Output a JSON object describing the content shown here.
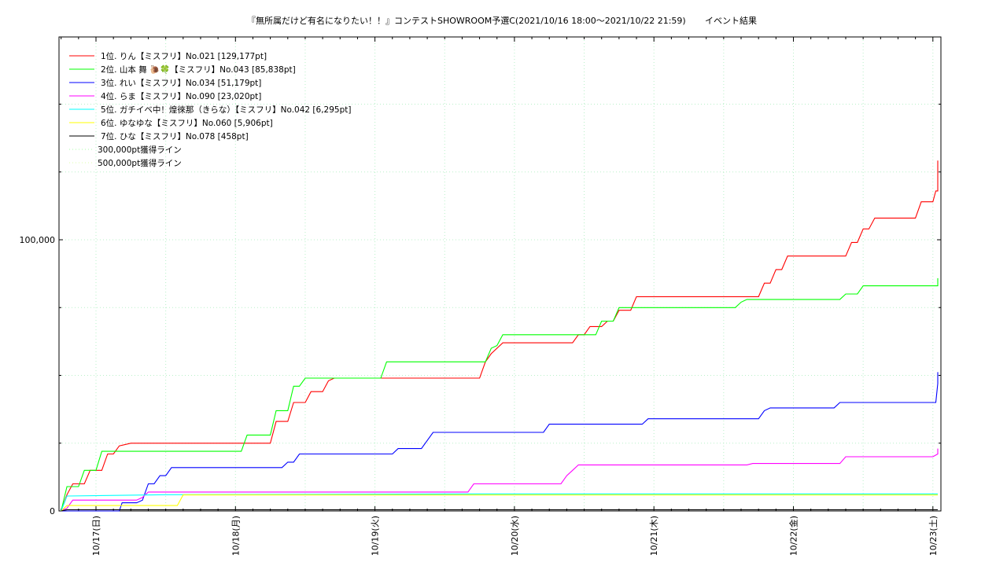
{
  "chart_data": {
    "type": "line",
    "title": "『無所属だけど有名になりたい！！』コンテストSHOWROOM予選C(2021/10/16 18:00～2021/10/22 21:59)",
    "subtitle": "イベント結果",
    "xlabel": "",
    "ylabel": "",
    "ylim": [
      0,
      150000
    ],
    "xlim": [
      "2021-10-16 18:00",
      "2021-10-23 00:00"
    ],
    "y_ticks": [
      {
        "value": 0,
        "label": "0"
      },
      {
        "value": 100000,
        "label": "100,000"
      }
    ],
    "x_ticks": [
      {
        "value": "2021-10-17",
        "label": "10/17(日)"
      },
      {
        "value": "2021-10-18",
        "label": "10/18(月)"
      },
      {
        "value": "2021-10-19",
        "label": "10/19(火)"
      },
      {
        "value": "2021-10-20",
        "label": "10/20(水)"
      },
      {
        "value": "2021-10-21",
        "label": "10/21(木)"
      },
      {
        "value": "2021-10-22",
        "label": "10/22(金)"
      },
      {
        "value": "2021-10-23",
        "label": "10/23(土)"
      }
    ],
    "grid": true,
    "legend_position": "top-left",
    "series": [
      {
        "name": "1位. りん【ミスフリ】No.021 [129,177pt]",
        "color": "#ff0000",
        "points": [
          [
            "2021-10-16 18:00",
            0
          ],
          [
            "2021-10-16 19:00",
            6000
          ],
          [
            "2021-10-16 20:00",
            10000
          ],
          [
            "2021-10-16 22:00",
            10000
          ],
          [
            "2021-10-16 23:00",
            15000
          ],
          [
            "2021-10-17 01:00",
            15000
          ],
          [
            "2021-10-17 02:00",
            21000
          ],
          [
            "2021-10-17 03:00",
            21000
          ],
          [
            "2021-10-17 04:00",
            24000
          ],
          [
            "2021-10-17 06:00",
            25000
          ],
          [
            "2021-10-18 06:00",
            25000
          ],
          [
            "2021-10-18 07:00",
            33000
          ],
          [
            "2021-10-18 09:00",
            33000
          ],
          [
            "2021-10-18 10:00",
            40000
          ],
          [
            "2021-10-18 12:00",
            40000
          ],
          [
            "2021-10-18 13:00",
            44000
          ],
          [
            "2021-10-18 15:00",
            44000
          ],
          [
            "2021-10-18 16:00",
            48000
          ],
          [
            "2021-10-18 17:00",
            49000
          ],
          [
            "2021-10-19 18:00",
            49000
          ],
          [
            "2021-10-19 19:00",
            55000
          ],
          [
            "2021-10-19 20:00",
            58000
          ],
          [
            "2021-10-19 22:00",
            62000
          ],
          [
            "2021-10-20 10:00",
            62000
          ],
          [
            "2021-10-20 11:00",
            65000
          ],
          [
            "2021-10-20 12:00",
            65000
          ],
          [
            "2021-10-20 13:00",
            68000
          ],
          [
            "2021-10-20 15:00",
            68000
          ],
          [
            "2021-10-20 16:00",
            70000
          ],
          [
            "2021-10-20 17:00",
            70000
          ],
          [
            "2021-10-20 18:00",
            74000
          ],
          [
            "2021-10-20 20:00",
            74000
          ],
          [
            "2021-10-20 21:00",
            79000
          ],
          [
            "2021-10-21 18:00",
            79000
          ],
          [
            "2021-10-21 19:00",
            84000
          ],
          [
            "2021-10-21 20:00",
            84000
          ],
          [
            "2021-10-21 21:00",
            89000
          ],
          [
            "2021-10-21 22:00",
            89000
          ],
          [
            "2021-10-21 23:00",
            94000
          ],
          [
            "2021-10-22 09:00",
            94000
          ],
          [
            "2021-10-22 10:00",
            99000
          ],
          [
            "2021-10-22 11:00",
            99000
          ],
          [
            "2021-10-22 12:00",
            104000
          ],
          [
            "2021-10-22 13:00",
            104000
          ],
          [
            "2021-10-22 14:00",
            108000
          ],
          [
            "2021-10-22 21:00",
            108000
          ],
          [
            "2021-10-22 22:00",
            114000
          ],
          [
            "2021-10-22 23:00",
            114000
          ],
          [
            "2021-10-23 00:00",
            114000
          ],
          [
            "2021-10-23 00:30",
            118000
          ],
          [
            "2021-10-23 01:00",
            118000
          ],
          [
            "2021-10-23 02:00",
            123000
          ],
          [
            "2021-10-23 03:00",
            126000
          ],
          [
            "2021-10-23 04:00",
            129177
          ],
          [
            "2021-10-23 04:59",
            129177
          ]
        ]
      },
      {
        "name": "2位. 山本 舞 🐌🍀【ミスフリ】No.043 [85,838pt]",
        "color": "#00ff00",
        "points": [
          [
            "2021-10-16 18:00",
            0
          ],
          [
            "2021-10-16 19:00",
            9000
          ],
          [
            "2021-10-16 21:00",
            9000
          ],
          [
            "2021-10-16 22:00",
            15000
          ],
          [
            "2021-10-17 00:00",
            15000
          ],
          [
            "2021-10-17 01:00",
            22000
          ],
          [
            "2021-10-18 01:00",
            22000
          ],
          [
            "2021-10-18 02:00",
            28000
          ],
          [
            "2021-10-18 06:00",
            28000
          ],
          [
            "2021-10-18 07:00",
            37000
          ],
          [
            "2021-10-18 09:00",
            37000
          ],
          [
            "2021-10-18 10:00",
            46000
          ],
          [
            "2021-10-18 11:00",
            46000
          ],
          [
            "2021-10-18 12:00",
            49000
          ],
          [
            "2021-10-19 01:00",
            49000
          ],
          [
            "2021-10-19 02:00",
            55000
          ],
          [
            "2021-10-19 19:00",
            55000
          ],
          [
            "2021-10-19 20:00",
            60000
          ],
          [
            "2021-10-19 21:00",
            61000
          ],
          [
            "2021-10-19 22:00",
            65000
          ],
          [
            "2021-10-20 14:00",
            65000
          ],
          [
            "2021-10-20 15:00",
            70000
          ],
          [
            "2021-10-20 17:00",
            70000
          ],
          [
            "2021-10-20 18:00",
            75000
          ],
          [
            "2021-10-21 14:00",
            75000
          ],
          [
            "2021-10-21 15:00",
            77000
          ],
          [
            "2021-10-21 16:00",
            78000
          ],
          [
            "2021-10-22 08:00",
            78000
          ],
          [
            "2021-10-22 09:00",
            80000
          ],
          [
            "2021-10-22 11:00",
            80000
          ],
          [
            "2021-10-22 12:00",
            83000
          ],
          [
            "2021-10-23 01:00",
            83000
          ],
          [
            "2021-10-23 02:00",
            85838
          ],
          [
            "2021-10-23 04:59",
            85838
          ]
        ]
      },
      {
        "name": "3位. れい【ミスフリ】No.034 [51,179pt]",
        "color": "#0000ff",
        "points": [
          [
            "2021-10-16 18:00",
            0
          ],
          [
            "2021-10-17 04:00",
            0
          ],
          [
            "2021-10-17 04:30",
            3000
          ],
          [
            "2021-10-17 06:00",
            3000
          ],
          [
            "2021-10-17 07:00",
            3000
          ],
          [
            "2021-10-17 08:00",
            4000
          ],
          [
            "2021-10-17 09:00",
            10000
          ],
          [
            "2021-10-17 10:00",
            10000
          ],
          [
            "2021-10-17 11:00",
            13000
          ],
          [
            "2021-10-17 12:00",
            13000
          ],
          [
            "2021-10-17 13:00",
            16000
          ],
          [
            "2021-10-18 08:00",
            16000
          ],
          [
            "2021-10-18 09:00",
            18000
          ],
          [
            "2021-10-18 10:00",
            18000
          ],
          [
            "2021-10-18 11:00",
            21000
          ],
          [
            "2021-10-19 03:00",
            21000
          ],
          [
            "2021-10-19 04:00",
            23000
          ],
          [
            "2021-10-19 08:00",
            23000
          ],
          [
            "2021-10-19 09:00",
            26000
          ],
          [
            "2021-10-19 10:00",
            29000
          ],
          [
            "2021-10-20 05:00",
            29000
          ],
          [
            "2021-10-20 06:00",
            32000
          ],
          [
            "2021-10-20 22:00",
            32000
          ],
          [
            "2021-10-20 23:00",
            34000
          ],
          [
            "2021-10-21 18:00",
            34000
          ],
          [
            "2021-10-21 19:00",
            37000
          ],
          [
            "2021-10-21 20:00",
            38000
          ],
          [
            "2021-10-22 07:00",
            38000
          ],
          [
            "2021-10-22 08:00",
            40000
          ],
          [
            "2021-10-23 00:30",
            40000
          ],
          [
            "2021-10-23 01:00",
            47000
          ],
          [
            "2021-10-23 02:00",
            49000
          ],
          [
            "2021-10-23 03:00",
            51179
          ],
          [
            "2021-10-23 04:59",
            51179
          ]
        ]
      },
      {
        "name": "4位. らま【ミスフリ】No.090 [23,020pt]",
        "color": "#ff00ff",
        "points": [
          [
            "2021-10-16 18:00",
            0
          ],
          [
            "2021-10-16 19:00",
            1000
          ],
          [
            "2021-10-16 20:00",
            4000
          ],
          [
            "2021-10-17 07:00",
            4000
          ],
          [
            "2021-10-17 08:00",
            5000
          ],
          [
            "2021-10-17 09:00",
            7000
          ],
          [
            "2021-10-19 16:00",
            7000
          ],
          [
            "2021-10-19 17:00",
            10000
          ],
          [
            "2021-10-20 08:00",
            10000
          ],
          [
            "2021-10-20 09:00",
            13000
          ],
          [
            "2021-10-20 10:00",
            15000
          ],
          [
            "2021-10-20 11:00",
            17000
          ],
          [
            "2021-10-21 16:00",
            17000
          ],
          [
            "2021-10-21 17:00",
            17500
          ],
          [
            "2021-10-22 08:00",
            17500
          ],
          [
            "2021-10-22 09:00",
            20000
          ],
          [
            "2021-10-23 00:00",
            20000
          ],
          [
            "2021-10-23 01:00",
            21000
          ],
          [
            "2021-10-23 02:00",
            23020
          ],
          [
            "2021-10-23 04:59",
            23020
          ]
        ]
      },
      {
        "name": "5位. ガチイベ中！煌徠那（きらな）【ミスフリ】No.042 [6,295pt]",
        "color": "#00ffff",
        "points": [
          [
            "2021-10-16 18:00",
            0
          ],
          [
            "2021-10-16 19:00",
            5500
          ],
          [
            "2021-10-17 12:00",
            6000
          ],
          [
            "2021-10-19 18:00",
            6295
          ],
          [
            "2021-10-23 04:59",
            6295
          ]
        ]
      },
      {
        "name": "6位. ゆなゆな【ミスフリ】No.060 [5,906pt]",
        "color": "#ffff00",
        "points": [
          [
            "2021-10-16 18:00",
            0
          ],
          [
            "2021-10-16 19:00",
            2000
          ],
          [
            "2021-10-17 14:00",
            2000
          ],
          [
            "2021-10-17 15:00",
            5906
          ],
          [
            "2021-10-23 04:59",
            5906
          ]
        ]
      },
      {
        "name": "7位. ひな【ミスフリ】No.078 [458pt]",
        "color": "#000000",
        "points": [
          [
            "2021-10-16 18:00",
            0
          ],
          [
            "2021-10-16 19:00",
            458
          ],
          [
            "2021-10-23 04:59",
            458
          ]
        ]
      }
    ],
    "reference_lines": [
      {
        "name": "300,000pt獲得ライン",
        "value": 300000,
        "color": "#aaffaa"
      },
      {
        "name": "500,000pt獲得ライン",
        "value": 500000,
        "color": "#ddffaa"
      }
    ]
  }
}
